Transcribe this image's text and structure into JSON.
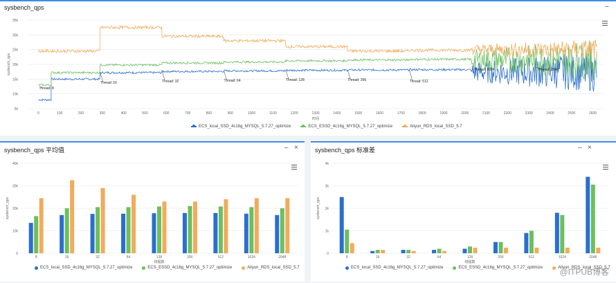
{
  "colors": {
    "blue": "#2b6fce",
    "green": "#6cbf5e",
    "orange": "#f0ac5c",
    "accent": "#3a8ee6"
  },
  "panels": {
    "top": {
      "title": "sysbench_qps",
      "minimize": "–",
      "menu_icon": "hamburger-icon"
    },
    "left": {
      "title": "sysbench_qps 平均值",
      "minimize": "–",
      "close": "×"
    },
    "right": {
      "title": "sysbench_qps 标准差",
      "minimize": "–",
      "close": "×"
    }
  },
  "watermark": "@ITPUB博客",
  "chart_data": [
    {
      "type": "line",
      "title": "sysbench_qps",
      "xlabel": "时间",
      "ylabel": "sysbench_qps",
      "ylim": [
        5000,
        35000
      ],
      "xlim": [
        -50,
        2650
      ],
      "yticks": [
        "5k",
        "10k",
        "15k",
        "20k",
        "25k",
        "30k",
        "35k"
      ],
      "xticks": [
        "0",
        "100",
        "200",
        "300",
        "400",
        "500",
        "600",
        "700",
        "800",
        "900",
        "1000",
        "1100",
        "1200",
        "1300",
        "1400",
        "1500",
        "1600",
        "1700",
        "1800",
        "1900",
        "2000",
        "2100",
        "2200",
        "2300",
        "2400",
        "2500",
        "2600"
      ],
      "series": [
        {
          "name": "ECS_local_SSD_4c16g_MYSQL_5.7.27_optimize",
          "color": "#2b6fce",
          "segments": [
            [
              0,
              60,
              8000
            ],
            [
              60,
              290,
              15000
            ],
            [
              290,
              580,
              17200
            ],
            [
              580,
              870,
              17600
            ],
            [
              870,
              1160,
              17800
            ],
            [
              1160,
              1450,
              18000
            ],
            [
              1450,
              1740,
              18100
            ],
            [
              1740,
              2030,
              18200
            ],
            [
              2030,
              2620,
              17500
            ]
          ]
        },
        {
          "name": "ECS_ESSD_4c16g_MYSQL_5.7.27_optimize",
          "color": "#6cbf5e",
          "segments": [
            [
              0,
              60,
              13000
            ],
            [
              60,
              290,
              17200
            ],
            [
              290,
              580,
              19800
            ],
            [
              580,
              870,
              20500
            ],
            [
              870,
              1160,
              20800
            ],
            [
              1160,
              1450,
              21200
            ],
            [
              1450,
              1740,
              21500
            ],
            [
              1740,
              2030,
              21700
            ],
            [
              2030,
              2620,
              21500
            ]
          ]
        },
        {
          "name": "Aliyun_RDS_local_SSD_5.7",
          "color": "#f0ac5c",
          "segments": [
            [
              0,
              290,
              24500
            ],
            [
              290,
              580,
              32500
            ],
            [
              580,
              870,
              29500
            ],
            [
              870,
              1160,
              28000
            ],
            [
              1160,
              1450,
              26000
            ],
            [
              1450,
              1740,
              24500
            ],
            [
              1740,
              2030,
              24800
            ],
            [
              2030,
              2620,
              25000
            ]
          ]
        }
      ],
      "annotations": [
        "Thread: 8",
        "Thread: 16",
        "Thread: 32",
        "Thread: 64",
        "Thread: 128",
        "Thread: 256",
        "Thread: 512",
        "Thread: 1024",
        "Thread: 2048"
      ]
    },
    {
      "type": "bar",
      "title": "sysbench_qps 平均值",
      "xlabel": "线程数",
      "ylabel": "sysbench_qps",
      "ylim": [
        0,
        40000
      ],
      "yticks": [
        "0",
        "10k",
        "20k",
        "30k",
        "40k"
      ],
      "categories": [
        "8",
        "16",
        "32",
        "64",
        "128",
        "256",
        "512",
        "1024",
        "2048"
      ],
      "series": [
        {
          "name": "ECS_local_SSD_4c16g_MYSQL_5.7.27_optimize",
          "color": "#2b6fce",
          "values": [
            13500,
            17000,
            17500,
            17600,
            17800,
            17900,
            17900,
            17600,
            17000
          ]
        },
        {
          "name": "ECS_ESSD_4c16g_MYSQL_5.7.27_optimize",
          "color": "#6cbf5e",
          "values": [
            16500,
            20000,
            20500,
            20500,
            20800,
            21000,
            20800,
            20500,
            20000
          ]
        },
        {
          "name": "Aliyun_RDS_local_SSD_5.7",
          "color": "#f0ac5c",
          "values": [
            24500,
            32500,
            29000,
            26000,
            23000,
            23000,
            24000,
            24500,
            24500
          ]
        }
      ]
    },
    {
      "type": "bar",
      "title": "sysbench_qps 标准差",
      "xlabel": "线程数",
      "ylabel": "sysbench_qps",
      "ylim": [
        0,
        4000
      ],
      "yticks": [
        "0",
        "1k",
        "2k",
        "3k",
        "4k"
      ],
      "categories": [
        "8",
        "16",
        "32",
        "64",
        "128",
        "256",
        "512",
        "1024",
        "2048"
      ],
      "series": [
        {
          "name": "ECS_local_SSD_4c16g_MYSQL_5.7.27_optimize",
          "color": "#2b6fce",
          "values": [
            2500,
            100,
            150,
            150,
            200,
            500,
            900,
            1800,
            3400
          ]
        },
        {
          "name": "ECS_ESSD_4c16g_MYSQL_5.7.27_optimize",
          "color": "#6cbf5e",
          "values": [
            1050,
            150,
            150,
            200,
            300,
            500,
            1000,
            1700,
            3050
          ]
        },
        {
          "name": "Aliyun_RDS_local_SSD_5.7",
          "color": "#f0ac5c",
          "values": [
            450,
            150,
            100,
            100,
            250,
            250,
            250,
            250,
            250
          ]
        }
      ]
    }
  ]
}
